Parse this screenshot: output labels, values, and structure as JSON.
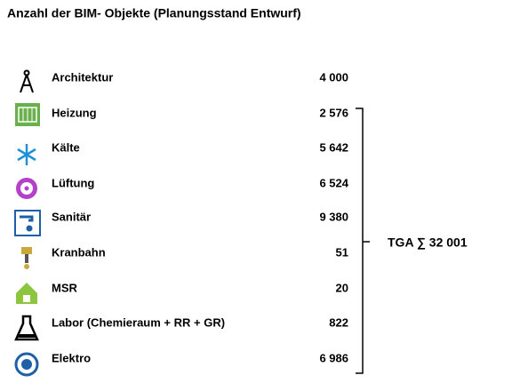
{
  "title": "Anzahl der BIM- Objekte (Planungsstand Entwurf)",
  "rows": [
    {
      "label": "Architektur",
      "value": "4 000"
    },
    {
      "label": "Heizung",
      "value": "2 576"
    },
    {
      "label": "Kälte",
      "value": "5 642"
    },
    {
      "label": "Lüftung",
      "value": "6 524"
    },
    {
      "label": "Sanitär",
      "value": "9 380"
    },
    {
      "label": "Kranbahn",
      "value": "51"
    },
    {
      "label": "MSR",
      "value": "20"
    },
    {
      "label": "Labor (Chemieraum + RR + GR)",
      "value": "822"
    },
    {
      "label": "Elektro",
      "value": "6 986"
    }
  ],
  "bracket_label": "TGA ∑ 32 001"
}
